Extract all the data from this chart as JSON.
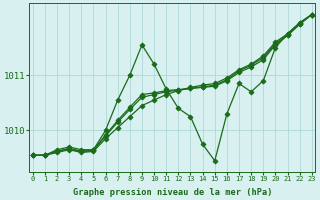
{
  "title": "Graphe pression niveau de la mer (hPa)",
  "bg_color": "#d8f0f0",
  "grid_color": "#b0d8d8",
  "line_color": "#1a6b1a",
  "x_min": 0,
  "x_max": 23,
  "y_min": 1009.25,
  "y_max": 1012.3,
  "y_ticks": [
    1010,
    1011
  ],
  "x_ticks": [
    0,
    1,
    2,
    3,
    4,
    5,
    6,
    7,
    8,
    9,
    10,
    11,
    12,
    13,
    14,
    15,
    16,
    17,
    18,
    19,
    20,
    21,
    22,
    23
  ],
  "series": [
    [
      1009.55,
      1009.55,
      1009.65,
      1009.7,
      1009.65,
      1009.65,
      1010.0,
      1010.55,
      1011.0,
      1011.55,
      1011.2,
      1010.75,
      1010.4,
      1010.25,
      1009.75,
      1009.45,
      1010.3,
      1010.85,
      1010.7,
      1010.9,
      1011.5,
      1011.75,
      1011.95,
      1012.1
    ],
    [
      1009.55,
      1009.55,
      1009.6,
      1009.65,
      1009.6,
      1009.62,
      1009.85,
      1010.05,
      1010.25,
      1010.45,
      1010.55,
      1010.65,
      1010.72,
      1010.78,
      1010.82,
      1010.85,
      1010.95,
      1011.1,
      1011.2,
      1011.35,
      1011.6,
      1011.75,
      1011.95,
      1012.1
    ],
    [
      1009.55,
      1009.55,
      1009.62,
      1009.67,
      1009.62,
      1009.64,
      1009.9,
      1010.15,
      1010.38,
      1010.6,
      1010.65,
      1010.7,
      1010.73,
      1010.76,
      1010.78,
      1010.8,
      1010.9,
      1011.05,
      1011.15,
      1011.28,
      1011.55,
      1011.72,
      1011.92,
      1012.1
    ],
    [
      1009.55,
      1009.55,
      1009.62,
      1009.67,
      1009.62,
      1009.64,
      1009.92,
      1010.18,
      1010.42,
      1010.65,
      1010.68,
      1010.72,
      1010.74,
      1010.76,
      1010.79,
      1010.82,
      1010.92,
      1011.08,
      1011.18,
      1011.32,
      1011.57,
      1011.73,
      1011.93,
      1012.1
    ]
  ],
  "marker": "D",
  "markersize": 2.5,
  "linewidth": 0.9
}
